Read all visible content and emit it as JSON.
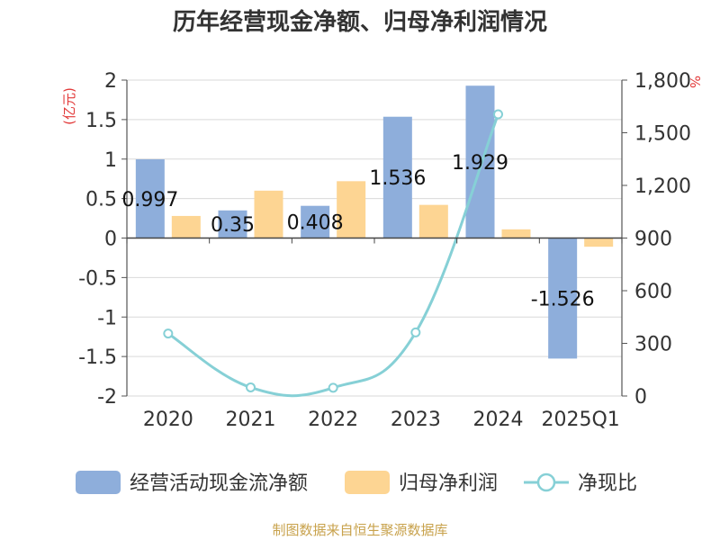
{
  "chart_data": {
    "type": "bar",
    "title": "历年经营现金净额、归母净利润情况",
    "categories": [
      "2020",
      "2021",
      "2022",
      "2023",
      "2024",
      "2025Q1"
    ],
    "left_axis": {
      "unit": "(亿元)",
      "ylim": [
        -2,
        2
      ],
      "ticks": [
        2,
        1.5,
        1,
        0.5,
        0,
        -0.5,
        -1,
        -1.5,
        -2
      ],
      "tick_labels": [
        "2",
        "1.5",
        "1",
        "0.5",
        "0",
        "-0.5",
        "-1",
        "-1.5",
        "-2"
      ]
    },
    "right_axis": {
      "unit": "%",
      "ylim": [
        0,
        1800
      ],
      "ticks": [
        1800,
        1500,
        1200,
        900,
        600,
        300,
        0
      ],
      "tick_labels": [
        "1,800",
        "1,500",
        "1,200",
        "900",
        "600",
        "300",
        "0"
      ]
    },
    "series": [
      {
        "name": "经营活动现金流净额",
        "type": "bar",
        "axis": "left",
        "color": "#8eaedb",
        "values": [
          0.997,
          0.35,
          0.408,
          1.536,
          1.929,
          -1.526
        ],
        "labels": [
          "0.997",
          "0.35",
          "0.408",
          "1.536",
          "1.929",
          "-1.526"
        ]
      },
      {
        "name": "归母净利润",
        "type": "bar",
        "axis": "left",
        "color": "#fdd593",
        "values": [
          0.28,
          0.6,
          0.72,
          0.42,
          0.11,
          -0.11
        ]
      },
      {
        "name": "净现比",
        "type": "line",
        "axis": "right",
        "color": "#86d0d6",
        "values": [
          [
            0,
            356
          ],
          [
            1,
            49
          ],
          [
            2,
            47
          ],
          [
            3,
            362
          ],
          [
            4,
            1605
          ]
        ]
      }
    ],
    "legend_position": "bottom",
    "source": "制图数据来自恒生聚源数据库"
  }
}
